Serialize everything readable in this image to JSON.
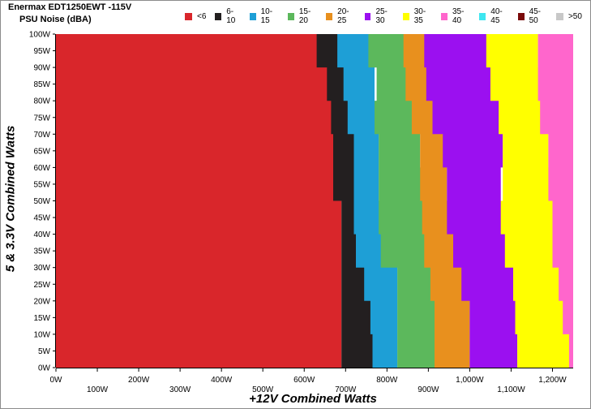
{
  "header": {
    "title": "Enermax EDT1250EWT -115V",
    "subtitle": "PSU Noise (dBA)"
  },
  "chart_data": {
    "type": "heatmap",
    "xlabel": "+12V Combined Watts",
    "ylabel": "5 & 3.3V Combined Watts",
    "xlim": [
      0,
      1250
    ],
    "ylim": [
      0,
      100
    ],
    "x_ticks": [
      "0W",
      "100W",
      "200W",
      "300W",
      "400W",
      "500W",
      "600W",
      "700W",
      "800W",
      "900W",
      "1,000W",
      "1,100W",
      "1,200W"
    ],
    "y_ticks": [
      "0W",
      "5W",
      "10W",
      "15W",
      "20W",
      "25W",
      "30W",
      "35W",
      "40W",
      "45W",
      "50W",
      "55W",
      "60W",
      "65W",
      "70W",
      "75W",
      "80W",
      "85W",
      "90W",
      "95W",
      "100W"
    ],
    "legend": [
      {
        "label": "<6",
        "color": "#d9262b"
      },
      {
        "label": "6-10",
        "color": "#231f20"
      },
      {
        "label": "10-15",
        "color": "#1e9fd6"
      },
      {
        "label": "15-20",
        "color": "#5cb85c"
      },
      {
        "label": "20-25",
        "color": "#e8901e"
      },
      {
        "label": "25-30",
        "color": "#9b10f0"
      },
      {
        "label": "30-35",
        "color": "#ffff00"
      },
      {
        "label": "35-40",
        "color": "#ff66cc"
      },
      {
        "label": "40-45",
        "color": "#3ee6f0"
      },
      {
        "label": "45-50",
        "color": "#7a0a0a"
      },
      {
        "label": ">50",
        "color": "#c8c8c8"
      }
    ],
    "legend_position": "top",
    "grid": false,
    "y_levels": [
      0,
      10,
      20,
      30,
      40,
      50,
      60,
      70,
      80,
      90,
      100
    ],
    "band_boundaries_x": [
      {
        "from": "<6",
        "to": "6-10",
        "x": [
          690,
          690,
          690,
          690,
          690,
          690,
          670,
          670,
          665,
          655,
          630
        ]
      },
      {
        "from": "6-10",
        "to": "10-15",
        "x": [
          765,
          765,
          760,
          745,
          725,
          720,
          720,
          720,
          705,
          695,
          680
        ]
      },
      {
        "from": "10-15",
        "to": "15-20",
        "x": [
          825,
          825,
          825,
          825,
          785,
          780,
          780,
          780,
          770,
          775,
          755
        ]
      },
      {
        "from": "15-20",
        "to": "20-25",
        "x": [
          915,
          915,
          915,
          905,
          890,
          885,
          880,
          880,
          860,
          845,
          840
        ]
      },
      {
        "from": "20-25",
        "to": "25-30",
        "x": [
          1000,
          1000,
          1000,
          980,
          960,
          945,
          945,
          935,
          910,
          895,
          890
        ]
      },
      {
        "from": "25-30",
        "to": "30-35",
        "x": [
          1115,
          1115,
          1110,
          1105,
          1085,
          1075,
          1080,
          1080,
          1070,
          1050,
          1040
        ]
      },
      {
        "from": "30-35",
        "to": "35-40",
        "x": [
          1250,
          1240,
          1225,
          1215,
          1200,
          1200,
          1190,
          1190,
          1170,
          1165,
          1165
        ]
      }
    ]
  }
}
